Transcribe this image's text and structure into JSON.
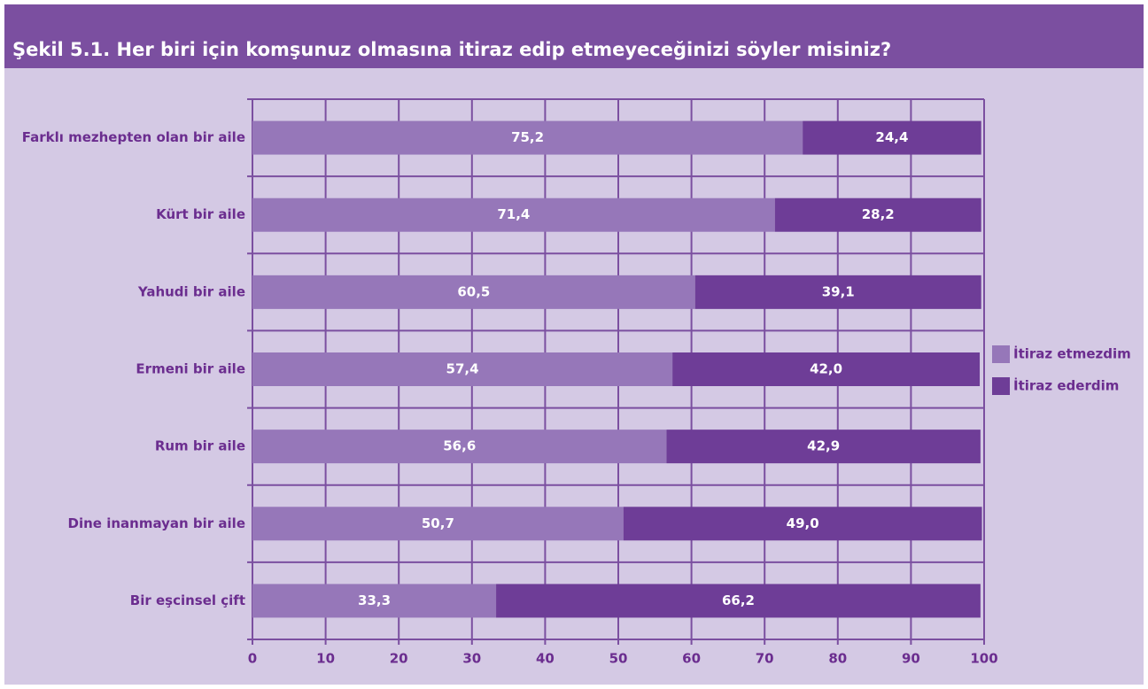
{
  "chart_data": {
    "type": "stacked-bar-horizontal",
    "title": "Şekil 5.1. Her biri için komşunuz olmasına itiraz edip etmeyeceğinizi söyler misiniz?",
    "categories": [
      "Farklı mezhepten olan bir aile",
      "Kürt bir aile",
      "Yahudi bir aile",
      "Ermeni bir aile",
      "Rum bir aile",
      "Dine inanmayan bir aile",
      "Bir eşcinsel çift"
    ],
    "series": [
      {
        "name": "İtiraz etmezdim",
        "color": "#9677b9",
        "values": [
          75.2,
          71.4,
          60.5,
          57.4,
          56.6,
          50.7,
          33.3
        ],
        "value_labels": [
          "75,2",
          "71,4",
          "60,5",
          "57,4",
          "56,6",
          "50,7",
          "33,3"
        ]
      },
      {
        "name": "İtiraz ederdim",
        "color": "#6e3d97",
        "values": [
          24.4,
          28.2,
          39.1,
          42.0,
          42.9,
          49.0,
          66.2
        ],
        "value_labels": [
          "24,4",
          "28,2",
          "39,1",
          "42,0",
          "42,9",
          "49,0",
          "66,2"
        ]
      }
    ],
    "xlim": [
      0,
      100
    ],
    "xticks": [
      0,
      10,
      20,
      30,
      40,
      50,
      60,
      70,
      80,
      90,
      100
    ],
    "grid": true,
    "legend": "right"
  }
}
